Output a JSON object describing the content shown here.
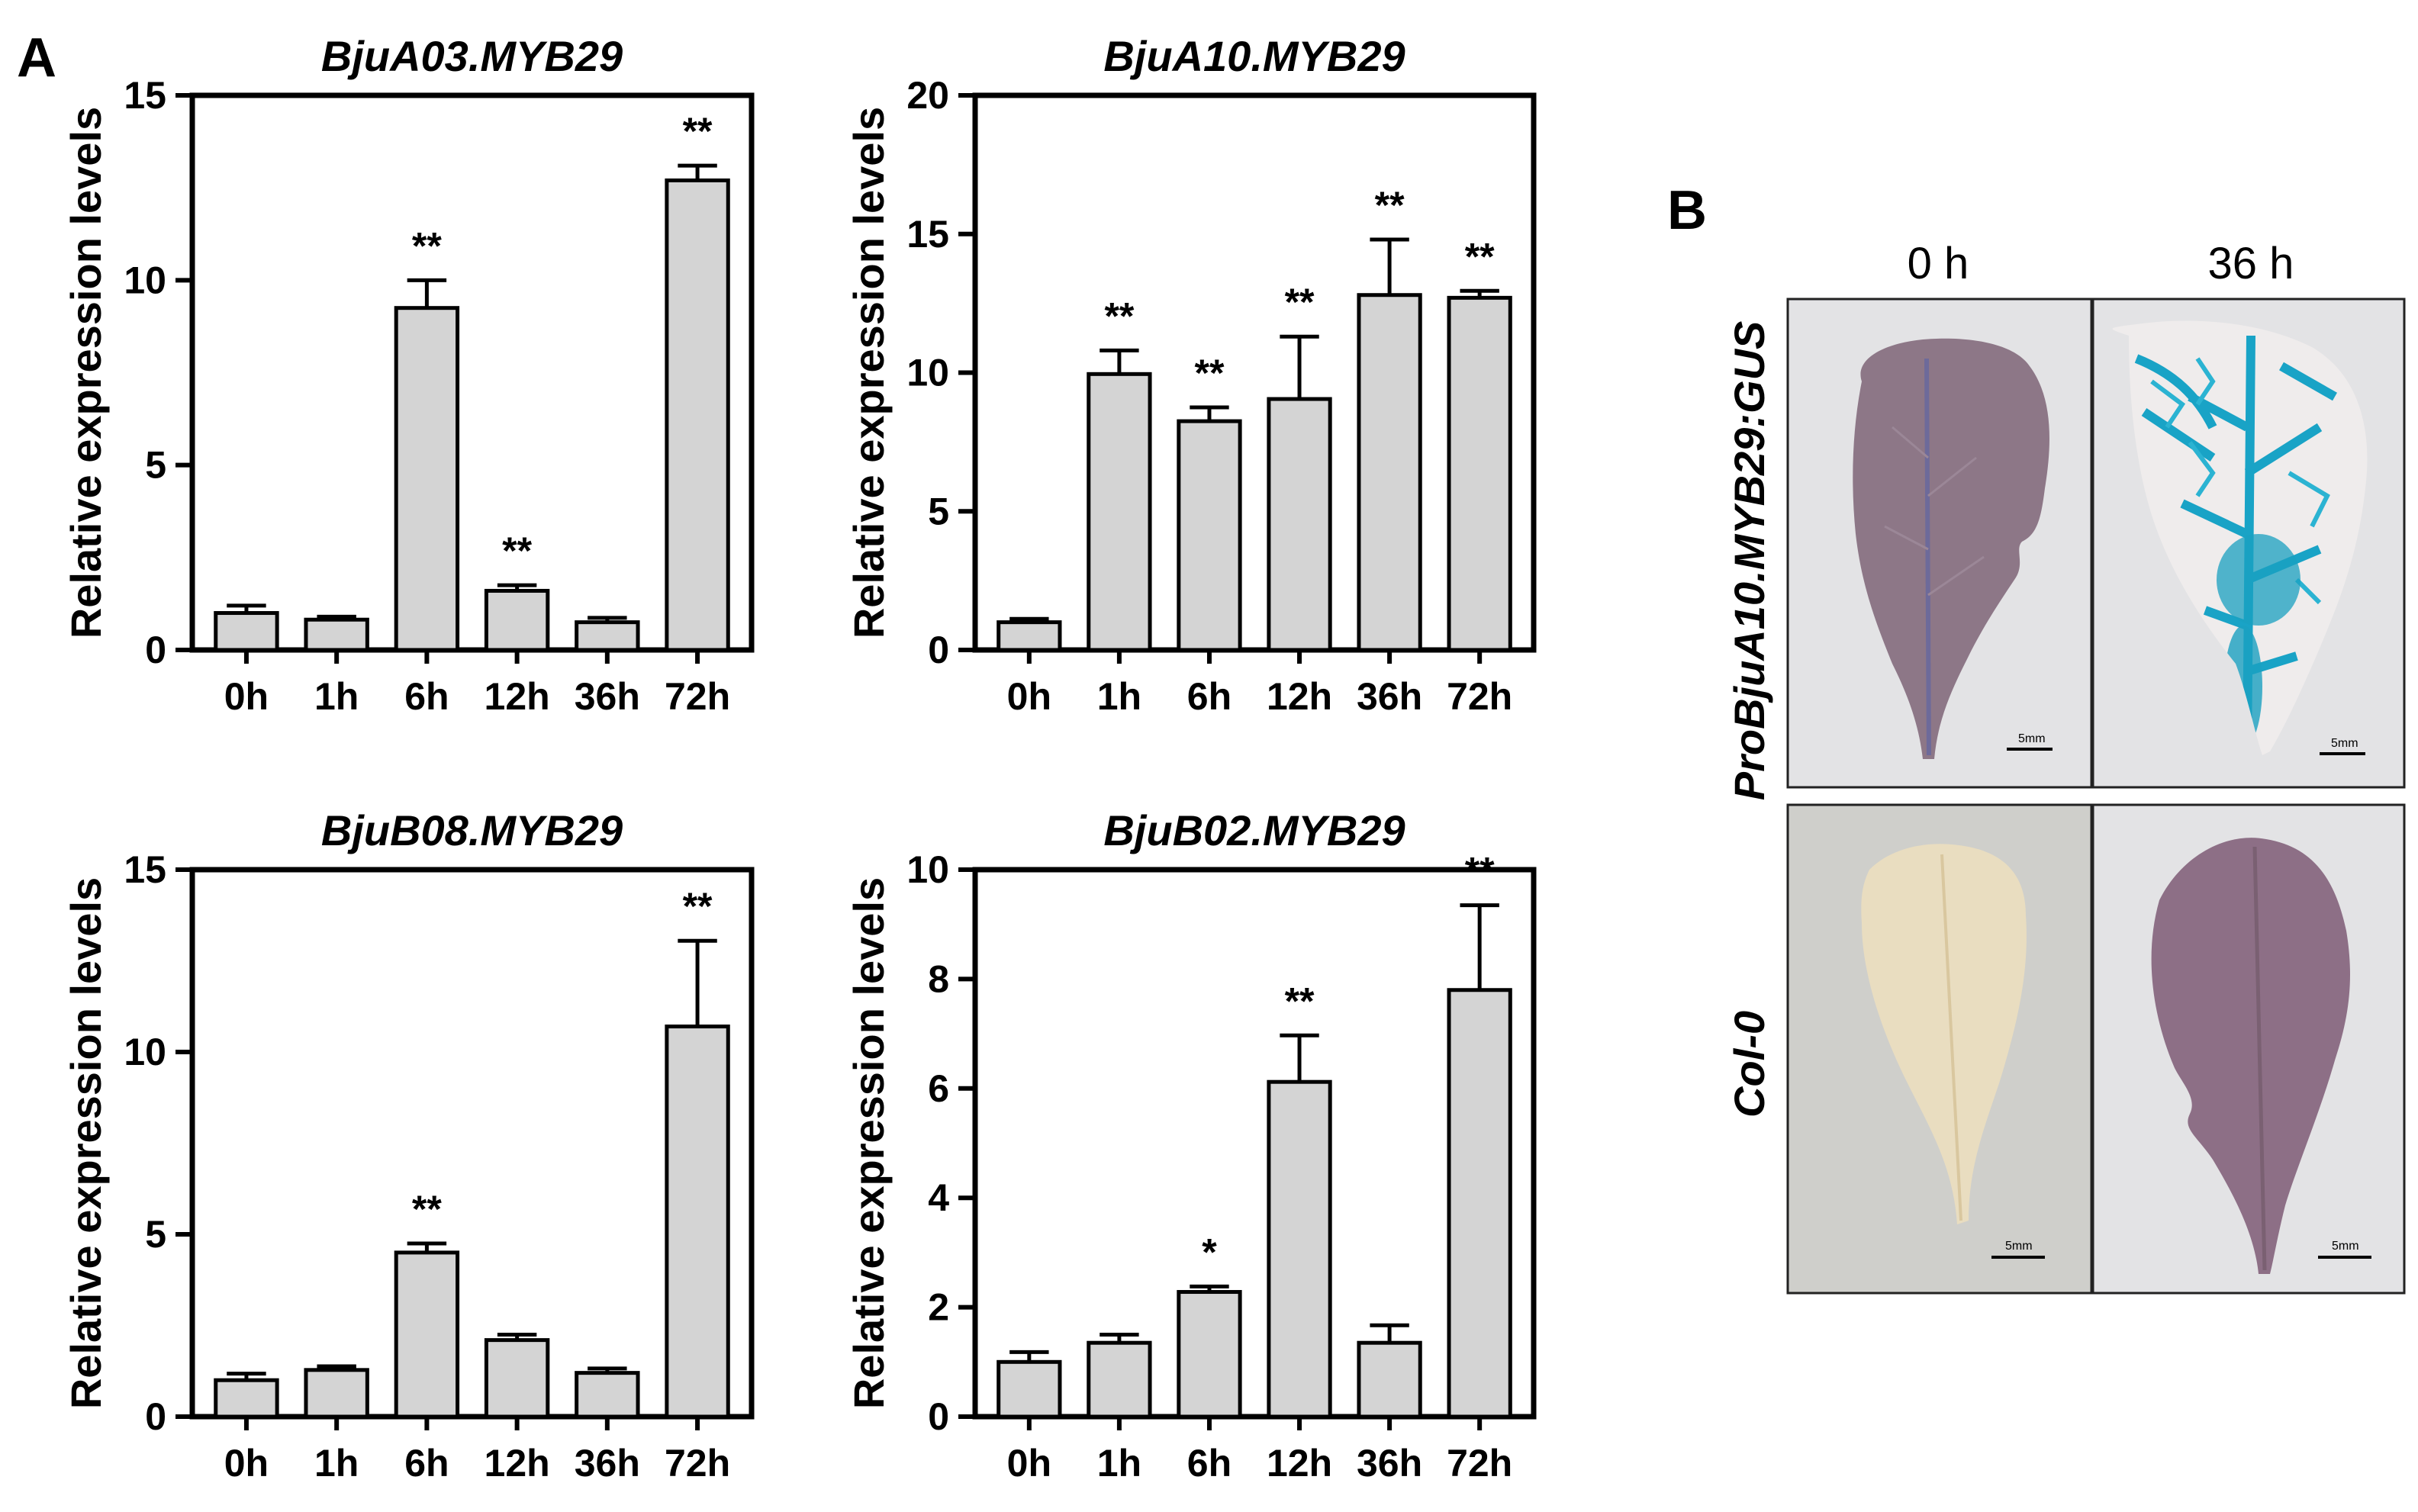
{
  "panel_a_label": "A",
  "panel_b_label": "B",
  "chart_data": [
    {
      "type": "bar",
      "title": "BjuA03.MYB29",
      "ylabel": "Relative expression levels",
      "xlabel": "",
      "categories": [
        "0h",
        "1h",
        "6h",
        "12h",
        "36h",
        "72h"
      ],
      "values": [
        1.0,
        0.82,
        9.25,
        1.6,
        0.75,
        12.7
      ],
      "errors": [
        0.2,
        0.08,
        0.75,
        0.15,
        0.12,
        0.4
      ],
      "significance": [
        "",
        "",
        "**",
        "**",
        "",
        "**"
      ],
      "ylim": [
        0,
        15
      ],
      "yticks": [
        0,
        5,
        10,
        15
      ]
    },
    {
      "type": "bar",
      "title": "BjuA10.MYB29",
      "ylabel": "Relative expression levels",
      "xlabel": "",
      "categories": [
        "0h",
        "1h",
        "6h",
        "12h",
        "36h",
        "72h"
      ],
      "values": [
        1.0,
        9.95,
        8.25,
        9.05,
        12.8,
        12.7
      ],
      "errors": [
        0.12,
        0.85,
        0.5,
        2.25,
        2.0,
        0.25
      ],
      "significance": [
        "",
        "**",
        "**",
        "**",
        "**",
        "**"
      ],
      "ylim": [
        0,
        20
      ],
      "yticks": [
        0,
        5,
        10,
        15,
        20
      ]
    },
    {
      "type": "bar",
      "title": "BjuB08.MYB29",
      "ylabel": "Relative expression levels",
      "xlabel": "",
      "categories": [
        "0h",
        "1h",
        "6h",
        "12h",
        "36h",
        "72h"
      ],
      "values": [
        1.0,
        1.28,
        4.5,
        2.1,
        1.2,
        10.7
      ],
      "errors": [
        0.18,
        0.1,
        0.25,
        0.15,
        0.12,
        2.35
      ],
      "significance": [
        "",
        "",
        "**",
        "",
        "",
        "**"
      ],
      "ylim": [
        0,
        15
      ],
      "yticks": [
        0,
        5,
        10,
        15
      ]
    },
    {
      "type": "bar",
      "title": "BjuB02.MYB29",
      "ylabel": "Relative expression levels",
      "xlabel": "",
      "categories": [
        "0h",
        "1h",
        "6h",
        "12h",
        "36h",
        "72h"
      ],
      "values": [
        1.0,
        1.35,
        2.28,
        6.12,
        1.35,
        7.8
      ],
      "errors": [
        0.18,
        0.15,
        0.1,
        0.85,
        0.32,
        1.55
      ],
      "significance": [
        "",
        "",
        "*",
        "**",
        "",
        "**"
      ],
      "ylim": [
        0,
        10
      ],
      "yticks": [
        0,
        2,
        4,
        6,
        8,
        10
      ]
    }
  ],
  "photo_panel": {
    "columns": [
      "0 h",
      "36 h"
    ],
    "rows": [
      "ProBjuA10.MYB29:GUS",
      "Col-0"
    ],
    "scale_bar_label": "5mm"
  },
  "colors": {
    "bar_fill": "#d4d4d4",
    "axis": "#000000",
    "gus_blue": "#1aa0c0",
    "leaf_purple": "#8a6f82",
    "leaf_cream": "#e8dcbf",
    "photo_bg_light": "#e2e2e2",
    "photo_bg_grey": "#cfcfcb"
  }
}
